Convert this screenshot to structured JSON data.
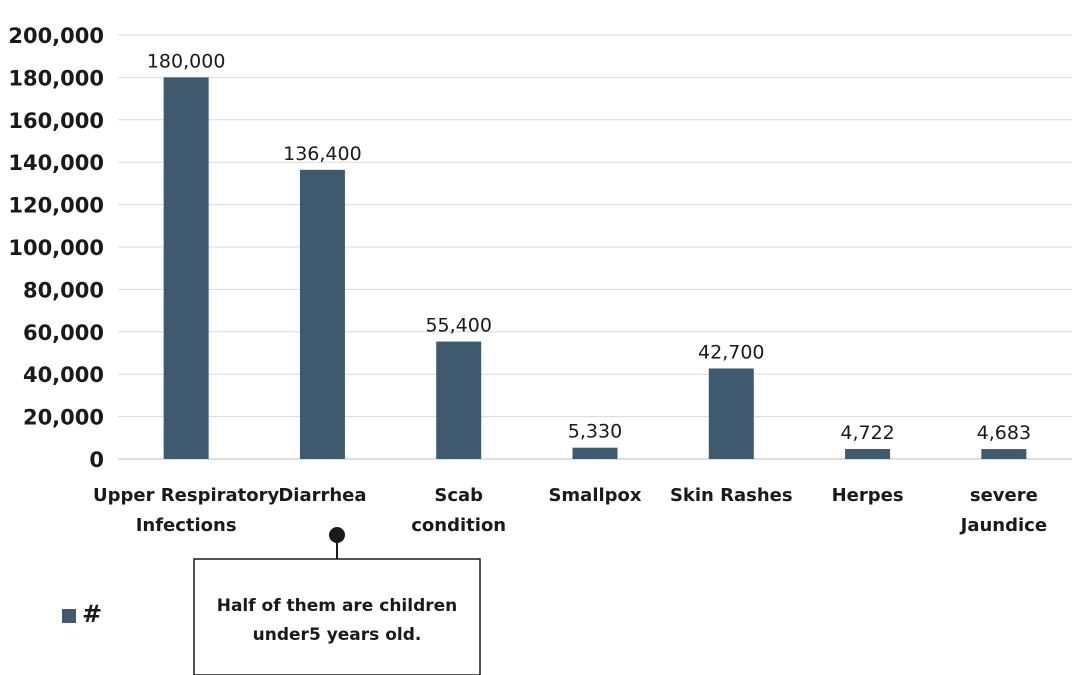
{
  "chart_data": {
    "type": "bar",
    "categories": [
      [
        "Upper Respiratory",
        "Infections"
      ],
      [
        "Diarrhea"
      ],
      [
        "Scab",
        "condition"
      ],
      [
        "Smallpox"
      ],
      [
        "Skin Rashes"
      ],
      [
        "Herpes"
      ],
      [
        "severe",
        "Jaundice"
      ]
    ],
    "series": [
      {
        "name": "#",
        "values": [
          180000,
          136400,
          55400,
          5330,
          42700,
          4722,
          4683
        ],
        "color": "#3f596e"
      }
    ],
    "data_labels": [
      "180,000",
      "136,400",
      "55,400",
      "5,330",
      "42,700",
      "4,722",
      "4,683"
    ],
    "yticks": [
      "0",
      "20,000",
      "40,000",
      "60,000",
      "80,000",
      "100,000",
      "120,000",
      "140,000",
      "160,000",
      "180,000",
      "200,000"
    ],
    "ylim": [
      0,
      200000
    ],
    "grid": true,
    "legend": "bottom-left",
    "annotation": {
      "target_category": "Diarrhea",
      "lines": [
        "Half of them are children",
        "under5 years old."
      ]
    },
    "title": "",
    "xlabel": "",
    "ylabel": ""
  }
}
